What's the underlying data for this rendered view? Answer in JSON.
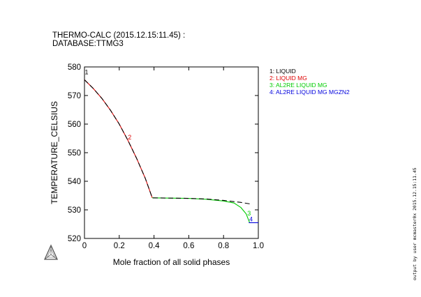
{
  "header": {
    "line1": "THERMO-CALC (2015.12.15:11.45) :",
    "line2": "DATABASE:TTMG3"
  },
  "side_note": "output by user mcmaster0x 2015.12.15:11.45",
  "chart_data": {
    "type": "line",
    "title": "",
    "xlabel": "Mole fraction of all solid phases",
    "ylabel": "TEMPERATURE_CELSIUS",
    "xlim": [
      0,
      1.0
    ],
    "ylim": [
      520,
      580
    ],
    "xticks": [
      0,
      0.2,
      0.4,
      0.6,
      0.8,
      1.0
    ],
    "xtick_labels": [
      "0",
      "0.2",
      "0.4",
      "0.6",
      "0.8",
      "1.0"
    ],
    "yticks": [
      520,
      530,
      540,
      550,
      560,
      570,
      580
    ],
    "ytick_labels": [
      "520",
      "530",
      "540",
      "550",
      "560",
      "570",
      "580"
    ],
    "grid": false,
    "legend_position": "right",
    "legend": [
      {
        "text": "1: LIQUID",
        "color": "#000000"
      },
      {
        "text": "2: LIQUID MG",
        "color": "#dd0000"
      },
      {
        "text": "3: AL2RE LIQUID MG",
        "color": "#00cc00"
      },
      {
        "text": "4: AL2RE LIQUID MG MGZN2",
        "color": "#0000dd"
      }
    ],
    "series": [
      {
        "name": "2: LIQUID MG",
        "color": "#dd0000",
        "dash": "",
        "x": [
          0,
          0.05,
          0.1,
          0.15,
          0.2,
          0.25,
          0.3,
          0.35,
          0.39
        ],
        "y": [
          575.5,
          572.5,
          569.0,
          564.8,
          560.0,
          554.3,
          548.0,
          541.0,
          534.2
        ]
      },
      {
        "name": "3: AL2RE LIQUID MG",
        "color": "#00cc00",
        "dash": "",
        "x": [
          0.39,
          0.5,
          0.6,
          0.7,
          0.8,
          0.86,
          0.9,
          0.93,
          0.95
        ],
        "y": [
          534.2,
          534.1,
          534.0,
          533.7,
          533.1,
          532.4,
          530.8,
          528.6,
          525.5
        ]
      },
      {
        "name": "4: AL2RE LIQUID MG MGZN2",
        "color": "#0000dd",
        "dash": "",
        "x": [
          0.945,
          0.955,
          0.97,
          1.0
        ],
        "y": [
          525.5,
          525.5,
          525.5,
          525.5
        ]
      },
      {
        "name": "1: LIQUID",
        "color": "#000000",
        "dash": "7,4",
        "x": [
          0,
          0.05,
          0.1,
          0.15,
          0.2,
          0.25,
          0.3,
          0.35,
          0.39,
          0.5,
          0.6,
          0.7,
          0.8,
          0.9,
          0.95
        ],
        "y": [
          575.5,
          572.5,
          569.0,
          564.8,
          560.0,
          554.3,
          548.0,
          541.0,
          534.2,
          534.1,
          534.0,
          533.8,
          533.3,
          532.6,
          532.1
        ]
      }
    ],
    "annotations": [
      {
        "text": "1",
        "x": 0.012,
        "y": 577.4,
        "color": "#000000"
      },
      {
        "text": "2",
        "x": 0.26,
        "y": 554.6,
        "color": "#dd0000"
      },
      {
        "text": "3",
        "x": 0.947,
        "y": 528.0,
        "color": "#00cc00"
      },
      {
        "text": "4",
        "x": 0.958,
        "y": 526.0,
        "color": "#0000dd"
      }
    ]
  }
}
